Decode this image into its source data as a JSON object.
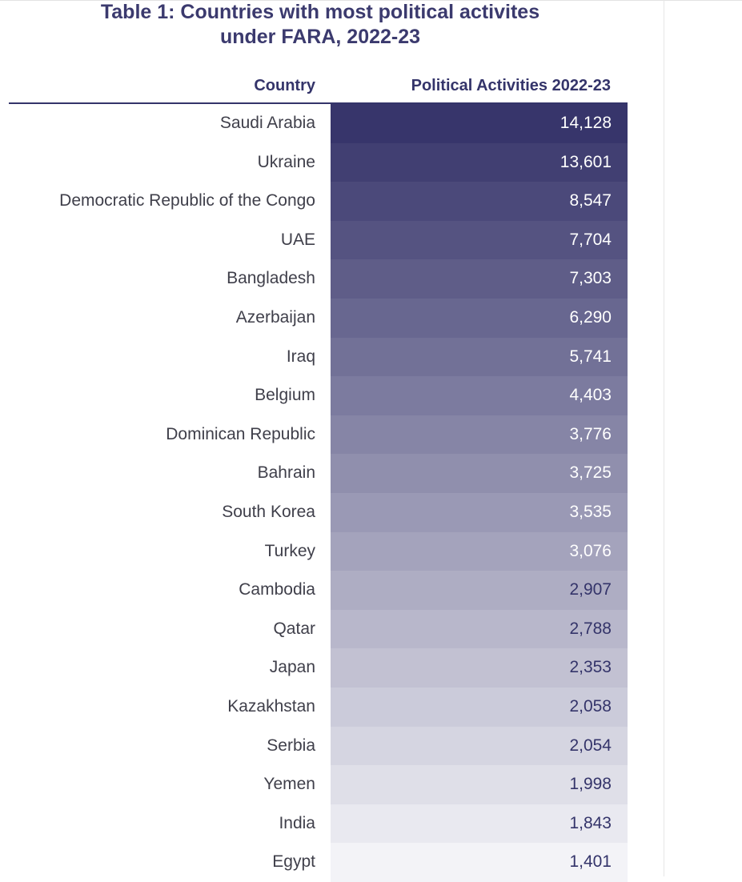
{
  "chart_data": {
    "type": "table",
    "title_lines": [
      "Table 1: Countries with most political activites",
      "under FARA, 2022-23"
    ],
    "columns": [
      "Country",
      "Political Activities 2022-23"
    ],
    "rows": [
      {
        "country": "Saudi Arabia",
        "value": "14,128",
        "num": 14128
      },
      {
        "country": "Ukraine",
        "value": "13,601",
        "num": 13601
      },
      {
        "country": "Democratic Republic of the Congo",
        "value": "8,547",
        "num": 8547
      },
      {
        "country": "UAE",
        "value": "7,704",
        "num": 7704
      },
      {
        "country": "Bangladesh",
        "value": "7,303",
        "num": 7303
      },
      {
        "country": "Azerbaijan",
        "value": "6,290",
        "num": 6290
      },
      {
        "country": "Iraq",
        "value": "5,741",
        "num": 5741
      },
      {
        "country": "Belgium",
        "value": "4,403",
        "num": 4403
      },
      {
        "country": "Dominican Republic",
        "value": "3,776",
        "num": 3776
      },
      {
        "country": "Bahrain",
        "value": "3,725",
        "num": 3725
      },
      {
        "country": "South Korea",
        "value": "3,535",
        "num": 3535
      },
      {
        "country": "Turkey",
        "value": "3,076",
        "num": 3076
      },
      {
        "country": "Cambodia",
        "value": "2,907",
        "num": 2907
      },
      {
        "country": "Qatar",
        "value": "2,788",
        "num": 2788
      },
      {
        "country": "Japan",
        "value": "2,353",
        "num": 2353
      },
      {
        "country": "Kazakhstan",
        "value": "2,058",
        "num": 2058
      },
      {
        "country": "Serbia",
        "value": "2,054",
        "num": 2054
      },
      {
        "country": "Yemen",
        "value": "1,998",
        "num": 1998
      },
      {
        "country": "India",
        "value": "1,843",
        "num": 1843
      },
      {
        "country": "Egypt",
        "value": "1,401",
        "num": 1401
      }
    ],
    "colors": {
      "title": "#3b3a6e",
      "header": "#34346a",
      "gradient_start": "#37356b",
      "gradient_end": "#f3f3f7",
      "light_text": "#ffffff",
      "dark_text": "#34346a"
    },
    "light_text_rows": 12
  }
}
